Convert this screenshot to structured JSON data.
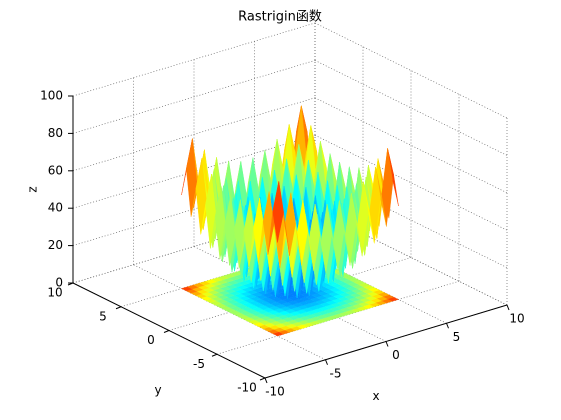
{
  "chart_data": {
    "type": "surface",
    "title": "Rastrigin函数",
    "x_label": "x",
    "y_label": "y",
    "z_label": "z",
    "x": [
      -5,
      -4.5,
      -4,
      -3.5,
      -3,
      -2.5,
      -2,
      -1.5,
      -1,
      -0.5,
      0,
      0.5,
      1,
      1.5,
      2,
      2.5,
      3,
      3.5,
      4,
      4.5,
      5
    ],
    "y": [
      -5,
      -4.5,
      -4,
      -3.5,
      -3,
      -2.5,
      -2,
      -1.5,
      -1,
      -0.5,
      0,
      0.5,
      1,
      1.5,
      2,
      2.5,
      3,
      3.5,
      4,
      4.5,
      5
    ],
    "z": [
      [
        50,
        65.25,
        41,
        57.25,
        34,
        51.25,
        29,
        47.25,
        26,
        45.25,
        25,
        45.25,
        26,
        47.25,
        29,
        51.25,
        34,
        57.25,
        41,
        65.25,
        50
      ],
      [
        65.25,
        80.5,
        56.25,
        72.5,
        49.25,
        66.5,
        44.25,
        62.5,
        41.25,
        60.5,
        40.25,
        60.5,
        41.25,
        62.5,
        44.25,
        66.5,
        49.25,
        72.5,
        56.25,
        80.5,
        65.25
      ],
      [
        41,
        56.25,
        32,
        48.25,
        25,
        42.25,
        20,
        38.25,
        17,
        36.25,
        16,
        36.25,
        17,
        38.25,
        20,
        42.25,
        25,
        48.25,
        32,
        56.25,
        41
      ],
      [
        57.25,
        72.5,
        48.25,
        64.5,
        41.25,
        58.5,
        36.25,
        54.5,
        33.25,
        52.5,
        32.25,
        52.5,
        33.25,
        54.5,
        36.25,
        58.5,
        41.25,
        64.5,
        48.25,
        72.5,
        57.25
      ],
      [
        34,
        49.25,
        25,
        41.25,
        18,
        35.25,
        13,
        31.25,
        10,
        29.25,
        9,
        29.25,
        10,
        31.25,
        13,
        35.25,
        18,
        41.25,
        25,
        49.25,
        34
      ],
      [
        51.25,
        66.5,
        42.25,
        58.5,
        35.25,
        52.5,
        30.25,
        48.5,
        27.25,
        46.5,
        26.25,
        46.5,
        27.25,
        48.5,
        30.25,
        52.5,
        35.25,
        58.5,
        42.25,
        66.5,
        51.25
      ],
      [
        29,
        44.25,
        20,
        36.25,
        13,
        30.25,
        8,
        26.25,
        5,
        24.25,
        4,
        24.25,
        5,
        26.25,
        8,
        30.25,
        13,
        36.25,
        20,
        44.25,
        29
      ],
      [
        47.25,
        62.5,
        38.25,
        54.5,
        31.25,
        48.5,
        26.25,
        44.5,
        23.25,
        42.5,
        22.25,
        42.5,
        23.25,
        44.5,
        26.25,
        48.5,
        31.25,
        54.5,
        38.25,
        62.5,
        47.25
      ],
      [
        26,
        41.25,
        17,
        33.25,
        10,
        27.25,
        5,
        23.25,
        2,
        21.25,
        1,
        21.25,
        2,
        23.25,
        5,
        27.25,
        10,
        33.25,
        17,
        41.25,
        26
      ],
      [
        45.25,
        60.5,
        36.25,
        52.5,
        29.25,
        46.5,
        24.25,
        42.5,
        21.25,
        40.5,
        20.25,
        40.5,
        21.25,
        42.5,
        24.25,
        46.5,
        29.25,
        52.5,
        36.25,
        60.5,
        45.25
      ],
      [
        25,
        40.25,
        16,
        32.25,
        9,
        26.25,
        4,
        22.25,
        1,
        20.25,
        0,
        20.25,
        1,
        22.25,
        4,
        26.25,
        9,
        32.25,
        16,
        40.25,
        25
      ],
      [
        45.25,
        60.5,
        36.25,
        52.5,
        29.25,
        46.5,
        24.25,
        42.5,
        21.25,
        40.5,
        20.25,
        40.5,
        21.25,
        42.5,
        24.25,
        46.5,
        29.25,
        52.5,
        36.25,
        60.5,
        45.25
      ],
      [
        26,
        41.25,
        17,
        33.25,
        10,
        27.25,
        5,
        23.25,
        2,
        21.25,
        1,
        21.25,
        2,
        23.25,
        5,
        27.25,
        10,
        33.25,
        17,
        41.25,
        26
      ],
      [
        47.25,
        62.5,
        38.25,
        54.5,
        31.25,
        48.5,
        26.25,
        44.5,
        23.25,
        42.5,
        22.25,
        42.5,
        23.25,
        44.5,
        26.25,
        48.5,
        31.25,
        54.5,
        38.25,
        62.5,
        47.25
      ],
      [
        29,
        44.25,
        20,
        36.25,
        13,
        30.25,
        8,
        26.25,
        5,
        24.25,
        4,
        24.25,
        5,
        26.25,
        8,
        30.25,
        13,
        36.25,
        20,
        44.25,
        29
      ],
      [
        51.25,
        66.5,
        42.25,
        58.5,
        35.25,
        52.5,
        30.25,
        48.5,
        27.25,
        46.5,
        26.25,
        46.5,
        27.25,
        48.5,
        30.25,
        52.5,
        35.25,
        58.5,
        42.25,
        66.5,
        51.25
      ],
      [
        34,
        49.25,
        25,
        41.25,
        18,
        35.25,
        13,
        31.25,
        10,
        29.25,
        9,
        29.25,
        10,
        31.25,
        13,
        35.25,
        18,
        41.25,
        25,
        49.25,
        34
      ],
      [
        57.25,
        72.5,
        48.25,
        64.5,
        41.25,
        58.5,
        36.25,
        54.5,
        33.25,
        52.5,
        32.25,
        52.5,
        33.25,
        54.5,
        36.25,
        58.5,
        41.25,
        64.5,
        48.25,
        72.5,
        57.25
      ],
      [
        41,
        56.25,
        32,
        48.25,
        25,
        42.25,
        20,
        38.25,
        17,
        36.25,
        16,
        36.25,
        17,
        38.25,
        20,
        42.25,
        25,
        48.25,
        32,
        56.25,
        41
      ],
      [
        65.25,
        80.5,
        56.25,
        72.5,
        49.25,
        66.5,
        44.25,
        62.5,
        41.25,
        60.5,
        40.25,
        60.5,
        41.25,
        62.5,
        44.25,
        66.5,
        49.25,
        72.5,
        56.25,
        80.5,
        65.25
      ],
      [
        50,
        65.25,
        41,
        57.25,
        34,
        51.25,
        29,
        47.25,
        26,
        45.25,
        25,
        45.25,
        26,
        47.25,
        29,
        51.25,
        34,
        57.25,
        41,
        65.25,
        50
      ]
    ],
    "xlim": [
      -10,
      10
    ],
    "ylim": [
      -10,
      10
    ],
    "zlim": [
      0,
      100
    ],
    "xticks": [
      -10,
      -5,
      0,
      5,
      10
    ],
    "yticks": [
      -10,
      -5,
      0,
      5,
      10
    ],
    "zticks": [
      0,
      20,
      40,
      60,
      80,
      100
    ],
    "grid": true,
    "colormap": "jet"
  }
}
